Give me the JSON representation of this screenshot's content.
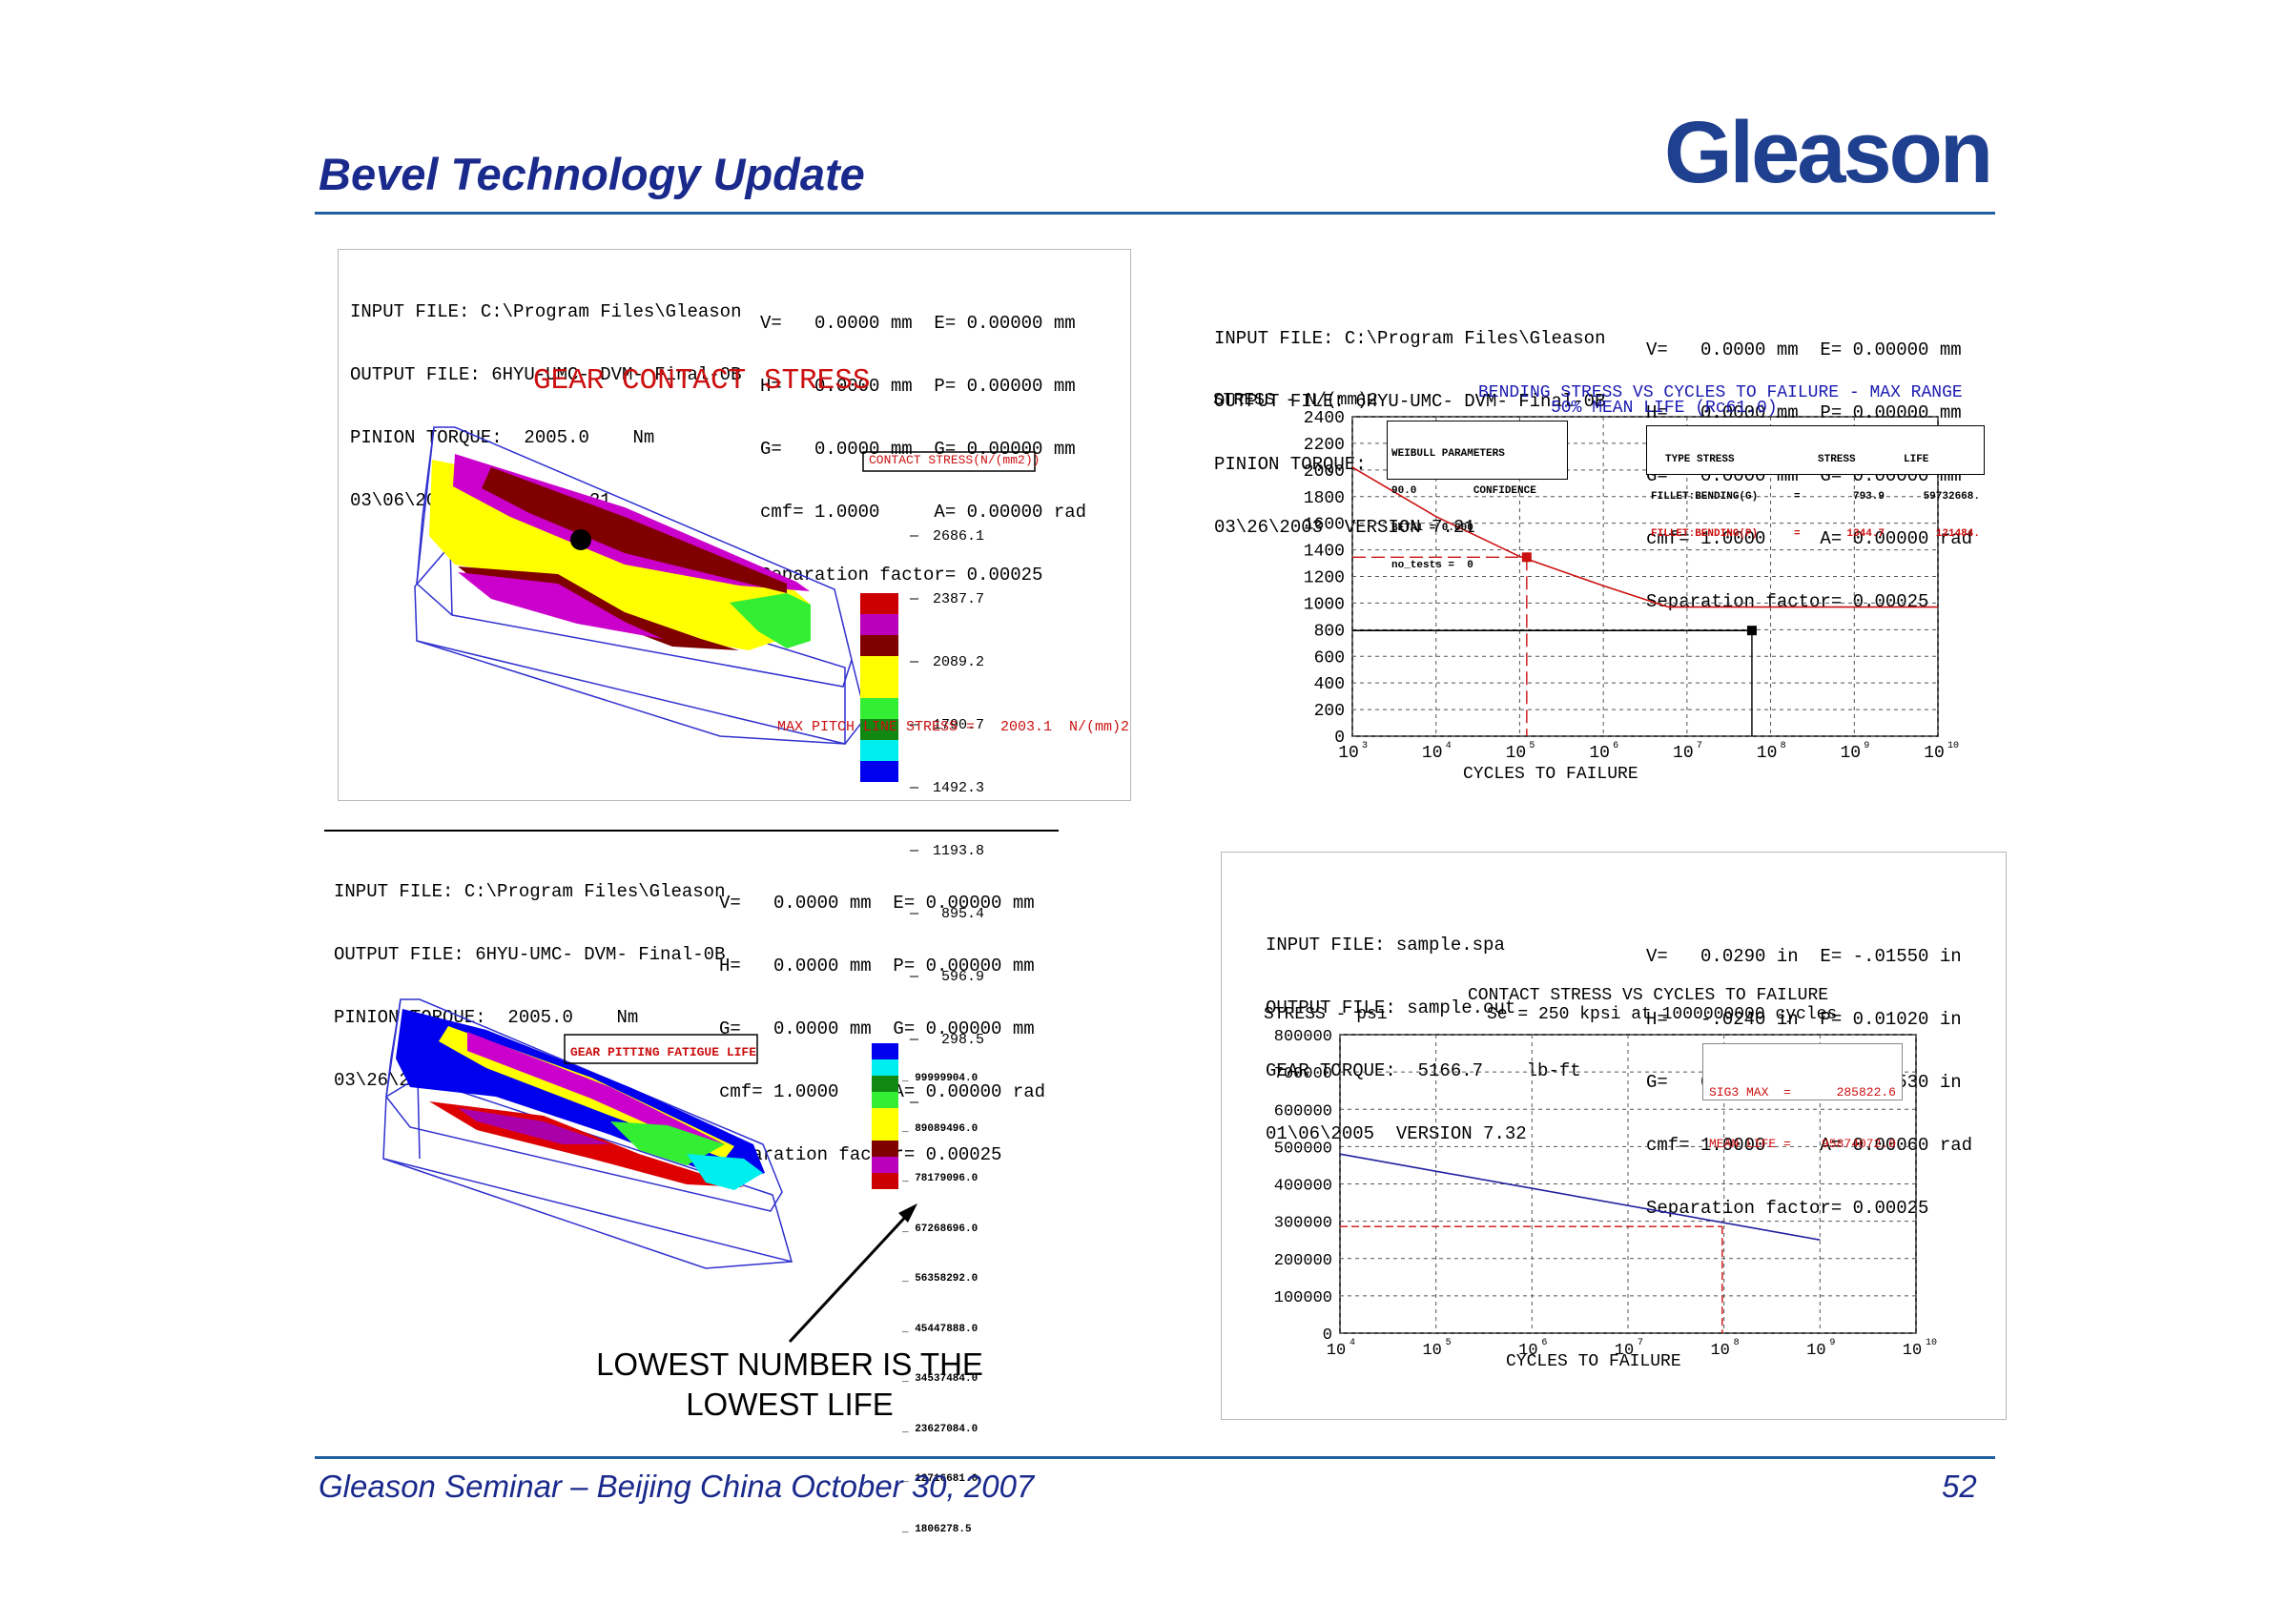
{
  "slide": {
    "title": "Bevel Technology Update",
    "logo": "Gleason",
    "footer_left": "Gleason Seminar – Beijing China  October 30, 2007",
    "page_number": "52",
    "callout": [
      "LOWEST NUMBER IS THE",
      "LOWEST LIFE"
    ]
  },
  "panel_contact": {
    "header": [
      "INPUT FILE: C:\\Program Files\\Gleason",
      "OUTPUT FILE: 6HYU-UMC- DVM- Final-0B",
      "PINION TORQUE:  2005.0    Nm",
      "03\\06\\2003  VERSION 7.21"
    ],
    "params": [
      "V=   0.0000 mm  E= 0.00000 mm",
      "H=   0.0000 mm  P= 0.00000 mm",
      "G=   0.0000 mm  G= 0.00000 mm",
      "cmf= 1.0000     A= 0.00000 rad",
      "Separation factor= 0.00025"
    ],
    "title": "GEAR CONTACT STRESS",
    "legend_title": "CONTACT STRESS(N/(mm2))",
    "legend_values": [
      "2686.1",
      "2387.7",
      "2089.2",
      "1790.7",
      "1492.3",
      "1193.8",
      "895.4",
      "596.9",
      "298.5"
    ],
    "footer": "MAX PITCH LINE STRESS =   2003.1  N/(mm)2"
  },
  "panel_pitting": {
    "header": [
      "INPUT FILE: C:\\Program Files\\Gleason",
      "OUTPUT FILE: 6HYU-UMC- DVM- Final-0B",
      "PINION TORQUE:  2005.0    Nm",
      "03\\26\\2003  VERSION 7.21"
    ],
    "params": [
      "V=   0.0000 mm  E= 0.00000 mm",
      "H=   0.0000 mm  P= 0.00000 mm",
      "G=   0.0000 mm  G= 0.00000 mm",
      "cmf= 1.0000     A= 0.00000 rad",
      "Separation factor= 0.00025"
    ],
    "legend_title": "GEAR PITTING FATIGUE LIFE",
    "legend_values": [
      "99999904.0",
      "89089496.0",
      "78179096.0",
      "67268696.0",
      "56358292.0",
      "45447888.0",
      "34537484.0",
      "23627084.0",
      "12716681.0",
      "1806278.5"
    ]
  },
  "panel_bending": {
    "header": [
      "INPUT FILE: C:\\Program Files\\Gleason",
      "OUTPUT FILE: 6HYU-UMC- DVM- Final-0B",
      "PINION TORQUE:  2005.0    Nm",
      "03\\26\\2003  VERSION 7.21"
    ],
    "params": [
      "V=   0.0000 mm  E= 0.00000 mm",
      "H=   0.0000 mm  P= 0.00000 mm",
      "G=   0.0000 mm  G= 0.00000 mm",
      "cmf= 1.0000     A= 0.00000 rad",
      "Separation factor= 0.00025"
    ],
    "box1": [
      "WEIBULL PARAMETERS",
      "90.0         CONFIDENCE",
      "BETA1 = 0.000",
      "no_tests =  0"
    ],
    "box2_head": [
      "TYPE STRESS",
      "STRESS",
      "LIFE"
    ],
    "box2_rows": [
      [
        "FILLET:BENDING(G)",
        "=",
        "793.9",
        "59732668."
      ],
      [
        "FILLET:BENDING(P)",
        "=",
        "1344.7",
        "121484."
      ]
    ]
  },
  "panel_sample": {
    "header": [
      "INPUT FILE: sample.spa",
      "OUTPUT FILE: sample.out",
      "GEAR TORQUE:  5166.7    lb-ft",
      "01\\06\\2005  VERSION 7.32"
    ],
    "params": [
      "V=   0.0290 in  E= -.01550 in",
      "H=   -.0240 in  P= 0.01020 in",
      "G=   0.0000 in  G= -.00530 in",
      "cmf= 1.0000     A= 0.00060 rad",
      "Separation factor= 0.00025"
    ],
    "box": [
      [
        "SIG3 MAX  =",
        "285822.6"
      ],
      [
        "MEAN LIFE =",
        "95874072.0"
      ]
    ]
  },
  "chart_data": [
    {
      "type": "line",
      "title": "BENDING STRESS VS CYCLES TO FAILURE - MAX RANGE",
      "subtitle": "50% MEAN LIFE (Rc61.0)",
      "ylabel": "STRESS - N/(mm)2",
      "xlabel": "CYCLES TO FAILURE",
      "x_scale": "log",
      "xlim": [
        1000,
        10000000000
      ],
      "ylim": [
        0,
        2400
      ],
      "x_tick_labels": [
        "10",
        "10",
        "10",
        "10",
        "10",
        "10",
        "10",
        "10"
      ],
      "x_tick_exponents": [
        "3",
        "4",
        "5",
        "6",
        "7",
        "8",
        "9",
        "10"
      ],
      "y_ticks": [
        0,
        200,
        400,
        600,
        800,
        1000,
        1200,
        1400,
        1600,
        1800,
        2000,
        2200,
        2400
      ],
      "grid": true,
      "series": [
        {
          "color": "#cc1010",
          "x": [
            1000,
            10000,
            100000,
            1000000,
            6000000,
            10000000000
          ],
          "y": [
            2020,
            1650,
            1350,
            1130,
            970,
            970
          ]
        },
        {
          "color": "#000000",
          "x": [
            1000,
            59732668
          ],
          "y": [
            793.9,
            793.9
          ]
        }
      ],
      "markers": [
        {
          "x": 121484,
          "y": 1344.7,
          "color": "#cc1010"
        },
        {
          "x": 59732668,
          "y": 793.9,
          "color": "#000000"
        }
      ]
    },
    {
      "type": "line",
      "title": "CONTACT STRESS VS CYCLES TO FAILURE",
      "subtitle": "Se = 250 kpsi at 1000000000 cycles",
      "ylabel": "STRESS - psi",
      "xlabel": "CYCLES TO FAILURE",
      "x_scale": "log",
      "xlim": [
        10000,
        10000000000
      ],
      "ylim": [
        0,
        800000
      ],
      "x_tick_labels": [
        "10",
        "10",
        "10",
        "10",
        "10",
        "10",
        "10"
      ],
      "x_tick_exponents": [
        "4",
        "5",
        "6",
        "7",
        "8",
        "9",
        "10"
      ],
      "y_ticks": [
        0,
        100000,
        200000,
        300000,
        400000,
        500000,
        600000,
        700000,
        800000
      ],
      "grid": true,
      "series": [
        {
          "color": "#2020a0",
          "x": [
            10000,
            1000000000
          ],
          "y": [
            480000,
            250000
          ]
        }
      ],
      "reference": {
        "x": 95874072,
        "y": 285822.6,
        "color": "#cc1010"
      }
    }
  ]
}
